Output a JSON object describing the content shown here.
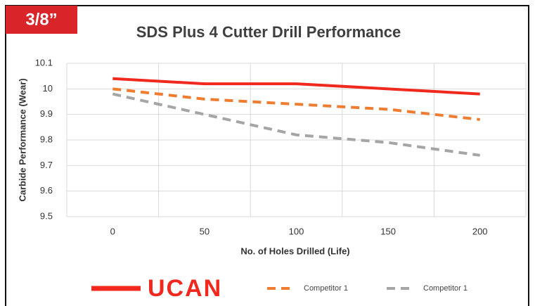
{
  "chart_data": {
    "type": "line",
    "badge": "3/8”",
    "title": "SDS Plus 4 Cutter Drill Performance",
    "x_label": "No. of Holes Drilled (Life)",
    "y_label": "Carbide Performance (Wear)",
    "categories": [
      0,
      50,
      100,
      150,
      200
    ],
    "ylim": [
      9.5,
      10.1
    ],
    "yticks": [
      9.5,
      9.6,
      9.7,
      9.8,
      9.9,
      10,
      10.1
    ],
    "grid": true,
    "legend": "bottom",
    "series": [
      {
        "name": "UCAN",
        "color": "#f0281e",
        "style": "solid",
        "values": [
          10.04,
          10.02,
          10.02,
          10.0,
          9.98
        ]
      },
      {
        "name": "Competitor 1",
        "color": "#ee7d31",
        "style": "dashed",
        "values": [
          10.0,
          9.96,
          9.94,
          9.92,
          9.88
        ]
      },
      {
        "name": "Competitor 1",
        "color": "#a5a5a5",
        "style": "dashed",
        "values": [
          9.98,
          9.9,
          9.82,
          9.79,
          9.74
        ]
      }
    ]
  }
}
